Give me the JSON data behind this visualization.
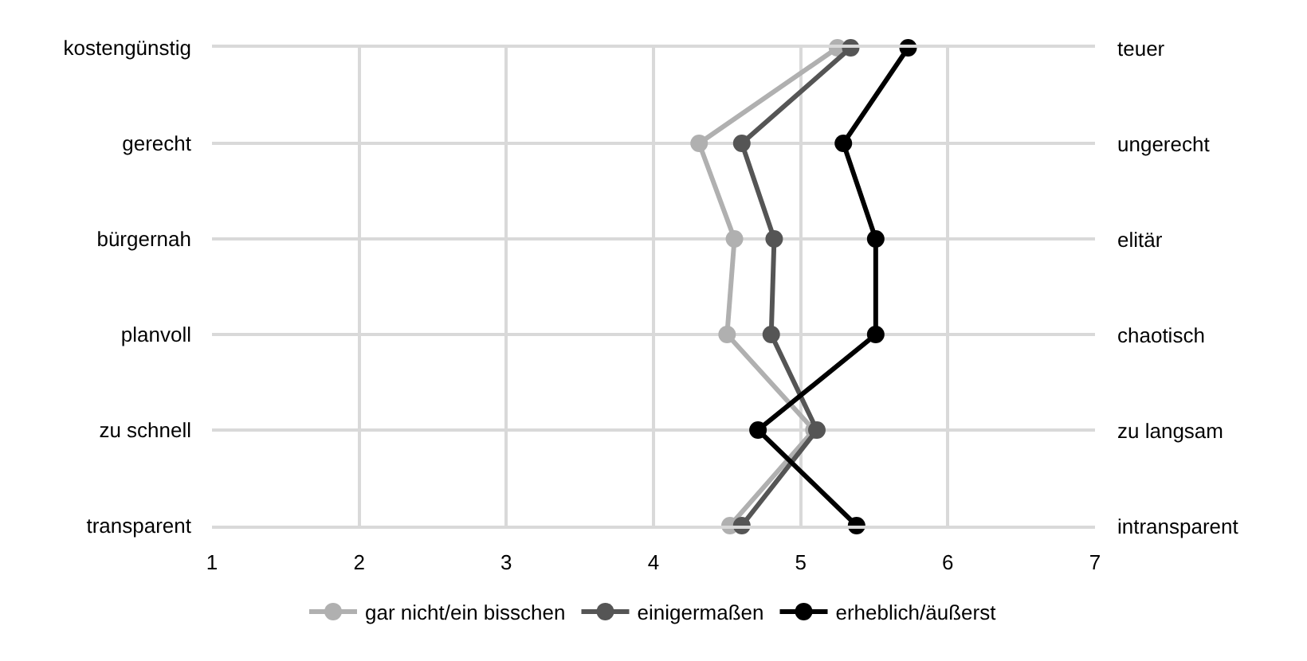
{
  "chart_data": {
    "type": "line",
    "orientation": "horizontal",
    "categories": [
      "kostengünstig",
      "gerecht",
      "bürgernah",
      "planvoll",
      "zu schnell",
      "transparent"
    ],
    "y2_categories": [
      "teuer",
      "ungerecht",
      "elitär",
      "chaotisch",
      "zu langsam",
      "intransparent"
    ],
    "series": [
      {
        "name": "gar nicht/ein bisschen",
        "color": "#b0b0b0",
        "values": [
          5.25,
          4.31,
          4.55,
          4.5,
          5.09,
          4.52
        ]
      },
      {
        "name": "einigermaßen",
        "color": "#555555",
        "values": [
          5.34,
          4.6,
          4.82,
          4.8,
          5.11,
          4.6
        ]
      },
      {
        "name": "erheblich/äußerst",
        "color": "#000000",
        "values": [
          5.73,
          5.29,
          5.51,
          5.51,
          4.71,
          5.38
        ]
      }
    ],
    "xlim": [
      1,
      7
    ],
    "xticks": [
      1,
      2,
      3,
      4,
      5,
      6,
      7
    ],
    "grid": true,
    "legend": "bottom",
    "marker": "circle",
    "line_style": "solid"
  }
}
